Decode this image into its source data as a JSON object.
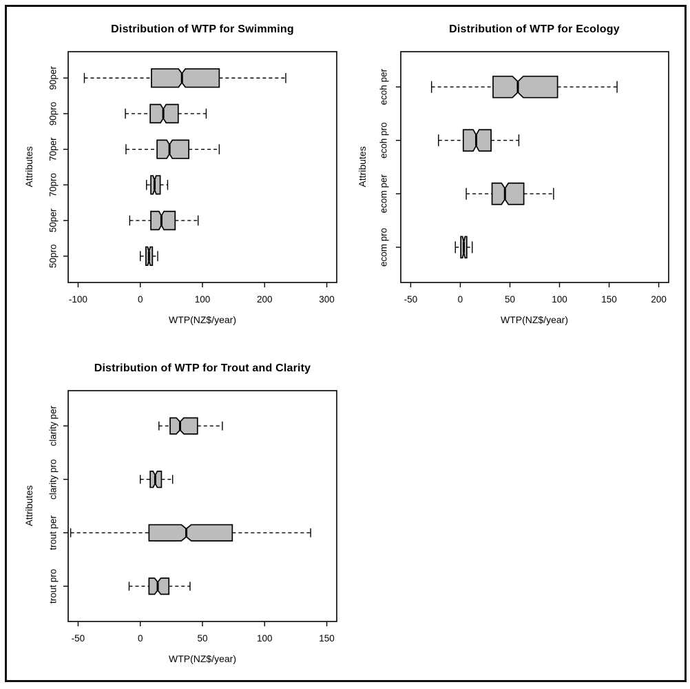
{
  "style": {
    "background": "#ffffff",
    "frame_color": "#111111",
    "box_fill": "#bcbcbc",
    "line_color": "#000000"
  },
  "chart_data": [
    {
      "type": "boxplot",
      "orientation": "horizontal",
      "notched": true,
      "title": "Distribution of WTP for Swimming",
      "xlabel": "WTP(NZ$/year)",
      "ylabel": "Attributes",
      "xlim": [
        -100,
        300
      ],
      "xticks": [
        -100,
        0,
        100,
        200,
        300
      ],
      "categories_top_to_bottom": [
        "90per",
        "90pro",
        "70per",
        "70pro",
        "50per",
        "50pro"
      ],
      "boxes": [
        {
          "category": "90per",
          "whisker_low": -90,
          "q1": 18,
          "median": 67,
          "q3": 127,
          "whisker_high": 234,
          "notch_low": 61.5,
          "notch_high": 72.5
        },
        {
          "category": "90pro",
          "whisker_low": -24,
          "q1": 16,
          "median": 37,
          "q3": 61,
          "whisker_high": 106,
          "notch_low": 32.5,
          "notch_high": 41.5
        },
        {
          "category": "70per",
          "whisker_low": -23,
          "q1": 27,
          "median": 47,
          "q3": 78,
          "whisker_high": 127,
          "notch_low": 42.5,
          "notch_high": 51.5
        },
        {
          "category": "70pro",
          "whisker_low": 10,
          "q1": 17,
          "median": 23,
          "q3": 32,
          "whisker_high": 44,
          "notch_low": 20.5,
          "notch_high": 25.5
        },
        {
          "category": "50per",
          "whisker_low": -17,
          "q1": 17,
          "median": 34,
          "q3": 56,
          "whisker_high": 93,
          "notch_low": 30,
          "notch_high": 38
        },
        {
          "category": "50pro",
          "whisker_low": 0,
          "q1": 9,
          "median": 14,
          "q3": 19.5,
          "whisker_high": 28,
          "notch_low": 12,
          "notch_high": 16
        }
      ]
    },
    {
      "type": "boxplot",
      "orientation": "horizontal",
      "notched": true,
      "title": "Distribution of WTP for Ecology",
      "xlabel": "WTP(NZ$/year)",
      "ylabel": "Attributes",
      "xlim": [
        -50,
        200
      ],
      "xticks": [
        -50,
        0,
        50,
        100,
        150,
        200
      ],
      "categories_top_to_bottom": [
        "ecoh per",
        "ecoh pro",
        "ecom per",
        "ecom pro"
      ],
      "boxes": [
        {
          "category": "ecoh per",
          "whisker_low": -29,
          "q1": 33,
          "median": 58,
          "q3": 98,
          "whisker_high": 158,
          "notch_low": 52.5,
          "notch_high": 63.5
        },
        {
          "category": "ecoh pro",
          "whisker_low": -22,
          "q1": 3,
          "median": 16,
          "q3": 31,
          "whisker_high": 59,
          "notch_low": 13,
          "notch_high": 19
        },
        {
          "category": "ecom per",
          "whisker_low": 6,
          "q1": 32,
          "median": 45,
          "q3": 64,
          "whisker_high": 94,
          "notch_low": 41.5,
          "notch_high": 48.5
        },
        {
          "category": "ecom pro",
          "whisker_low": -5,
          "q1": 0.5,
          "median": 3.5,
          "q3": 6.5,
          "whisker_high": 12,
          "notch_low": 2.2,
          "notch_high": 4.8
        }
      ]
    },
    {
      "type": "boxplot",
      "orientation": "horizontal",
      "notched": true,
      "title": "Distribution of WTP for Trout and Clarity",
      "xlabel": "WTP(NZ$/year)",
      "ylabel": "Attributes",
      "xlim": [
        -50,
        150
      ],
      "xticks": [
        -50,
        0,
        50,
        100,
        150
      ],
      "categories_top_to_bottom": [
        "clarity per",
        "clarity pro",
        "trout per",
        "trout pro"
      ],
      "boxes": [
        {
          "category": "clarity per",
          "whisker_low": 15,
          "q1": 24,
          "median": 32,
          "q3": 46,
          "whisker_high": 66,
          "notch_low": 29,
          "notch_high": 35
        },
        {
          "category": "clarity pro",
          "whisker_low": 0,
          "q1": 8,
          "median": 12,
          "q3": 17,
          "whisker_high": 26,
          "notch_low": 10.3,
          "notch_high": 13.7
        },
        {
          "category": "trout per",
          "whisker_low": -56,
          "q1": 7,
          "median": 37,
          "q3": 74,
          "whisker_high": 137,
          "notch_low": 33,
          "notch_high": 41
        },
        {
          "category": "trout pro",
          "whisker_low": -9,
          "q1": 7,
          "median": 14,
          "q3": 23,
          "whisker_high": 40,
          "notch_low": 11.5,
          "notch_high": 16.5
        }
      ]
    }
  ]
}
